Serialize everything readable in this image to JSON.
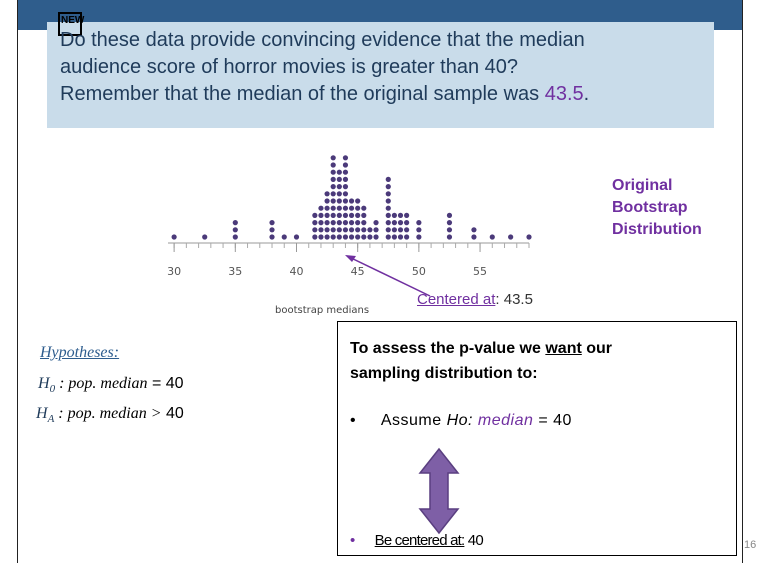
{
  "badge": "NEW",
  "question": {
    "line1": "Do these data provide convincing evidence that the median",
    "line2": "audience score of horror movies is greater than 40?",
    "line3": "Remember that the median of the original sample was",
    "highlight": "43.5",
    "end": "."
  },
  "dotplot": {
    "type": "dot",
    "xlabel": "bootstrap medians",
    "xlim": [
      29.5,
      59
    ],
    "xticks": [
      30,
      35,
      40,
      45,
      50,
      55
    ],
    "x": [
      30,
      32.5,
      35,
      38,
      39,
      40,
      41.5,
      42,
      42.5,
      43,
      43.5,
      44,
      44.5,
      45,
      45.5,
      46,
      46.5,
      47.5,
      48,
      48.5,
      49,
      50,
      52.5,
      54.5,
      56,
      57.5,
      59
    ],
    "counts": [
      1,
      1,
      3,
      3,
      1,
      1,
      4,
      5,
      7,
      12,
      10,
      12,
      6,
      6,
      5,
      2,
      3,
      9,
      4,
      4,
      4,
      3,
      4,
      2,
      1,
      1,
      1
    ],
    "color": "#4b3a7a"
  },
  "side_label": [
    "Original",
    "Bootstrap",
    "Distribution"
  ],
  "centered": {
    "label": "Centered at",
    "value": ": 43.5"
  },
  "hypotheses": {
    "title": "Hypotheses:",
    "h0": {
      "symbol": "H",
      "sub": "0",
      "text": ": pop. median",
      "rel": "= 40"
    },
    "ha": {
      "symbol": "H",
      "sub": "A",
      "text": ": pop. median >",
      "rel": "40"
    }
  },
  "box": {
    "intro_a": "To assess the p-value we ",
    "intro_want": "want",
    "intro_b": " our",
    "intro_c": "sampling distribution to",
    "intro_colon": ":",
    "bullet1_a": "Assume ",
    "bullet1_b": "Ho:",
    "bullet1_c": " median",
    "bullet1_d": " = 40",
    "bullet2_a": "Be centered at:",
    "bullet2_b": " 40"
  },
  "page_number": "16"
}
